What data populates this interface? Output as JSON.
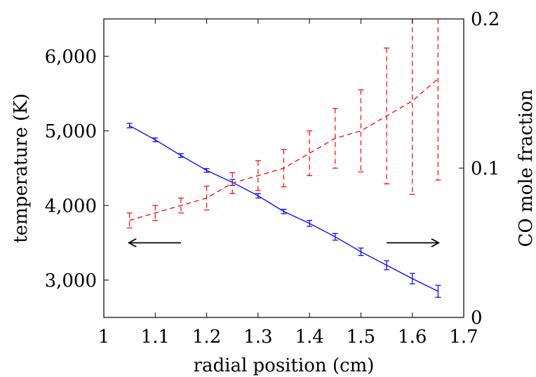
{
  "chart_data": {
    "type": "line",
    "xlabel": "radial position (cm)",
    "ylabel_left": "temperature (K)",
    "ylabel_right": "CO mole fraction",
    "xlim": [
      1.0,
      1.7
    ],
    "ylim_left": [
      2500,
      6500
    ],
    "ylim_right": [
      0.0,
      0.2
    ],
    "x_ticks": [
      "1",
      "1.1",
      "1.2",
      "1.3",
      "1.4",
      "1.5",
      "1.6",
      "1.7"
    ],
    "y_left_ticks": [
      "3,000",
      "4,000",
      "5,000",
      "6,000"
    ],
    "y_right_ticks": [
      "0",
      "0.1",
      "0.2"
    ],
    "grid": false,
    "series": [
      {
        "axis": "left",
        "color": "#0000ff",
        "style": "solid",
        "x": [
          1.05,
          1.1,
          1.15,
          1.2,
          1.25,
          1.3,
          1.35,
          1.4,
          1.45,
          1.5,
          1.55,
          1.6,
          1.65
        ],
        "y": [
          5070,
          4880,
          4670,
          4470,
          4310,
          4130,
          3920,
          3760,
          3580,
          3380,
          3200,
          3020,
          2850
        ],
        "err": [
          30,
          25,
          25,
          25,
          40,
          30,
          30,
          40,
          45,
          50,
          60,
          70,
          80
        ]
      },
      {
        "axis": "right",
        "color": "#ff0000",
        "style": "dashed",
        "x": [
          1.05,
          1.1,
          1.15,
          1.2,
          1.25,
          1.3,
          1.35,
          1.4,
          1.45,
          1.5,
          1.55,
          1.6,
          1.65
        ],
        "y": [
          0.065,
          0.07,
          0.075,
          0.08,
          0.09,
          0.095,
          0.1,
          0.11,
          0.12,
          0.125,
          0.135,
          0.145,
          0.16
        ],
        "err": [
          0.005,
          0.005,
          0.005,
          0.008,
          0.007,
          0.01,
          0.0125,
          0.015,
          0.02,
          0.0275,
          0.0455,
          0.0625,
          0.068
        ]
      }
    ],
    "annotations": [
      {
        "type": "arrow",
        "direction": "left",
        "from_x": 1.15,
        "to_x": 1.05,
        "y_left": 3500
      },
      {
        "type": "arrow",
        "direction": "right",
        "from_x": 1.55,
        "to_x": 1.65,
        "y_left": 3500
      }
    ]
  }
}
